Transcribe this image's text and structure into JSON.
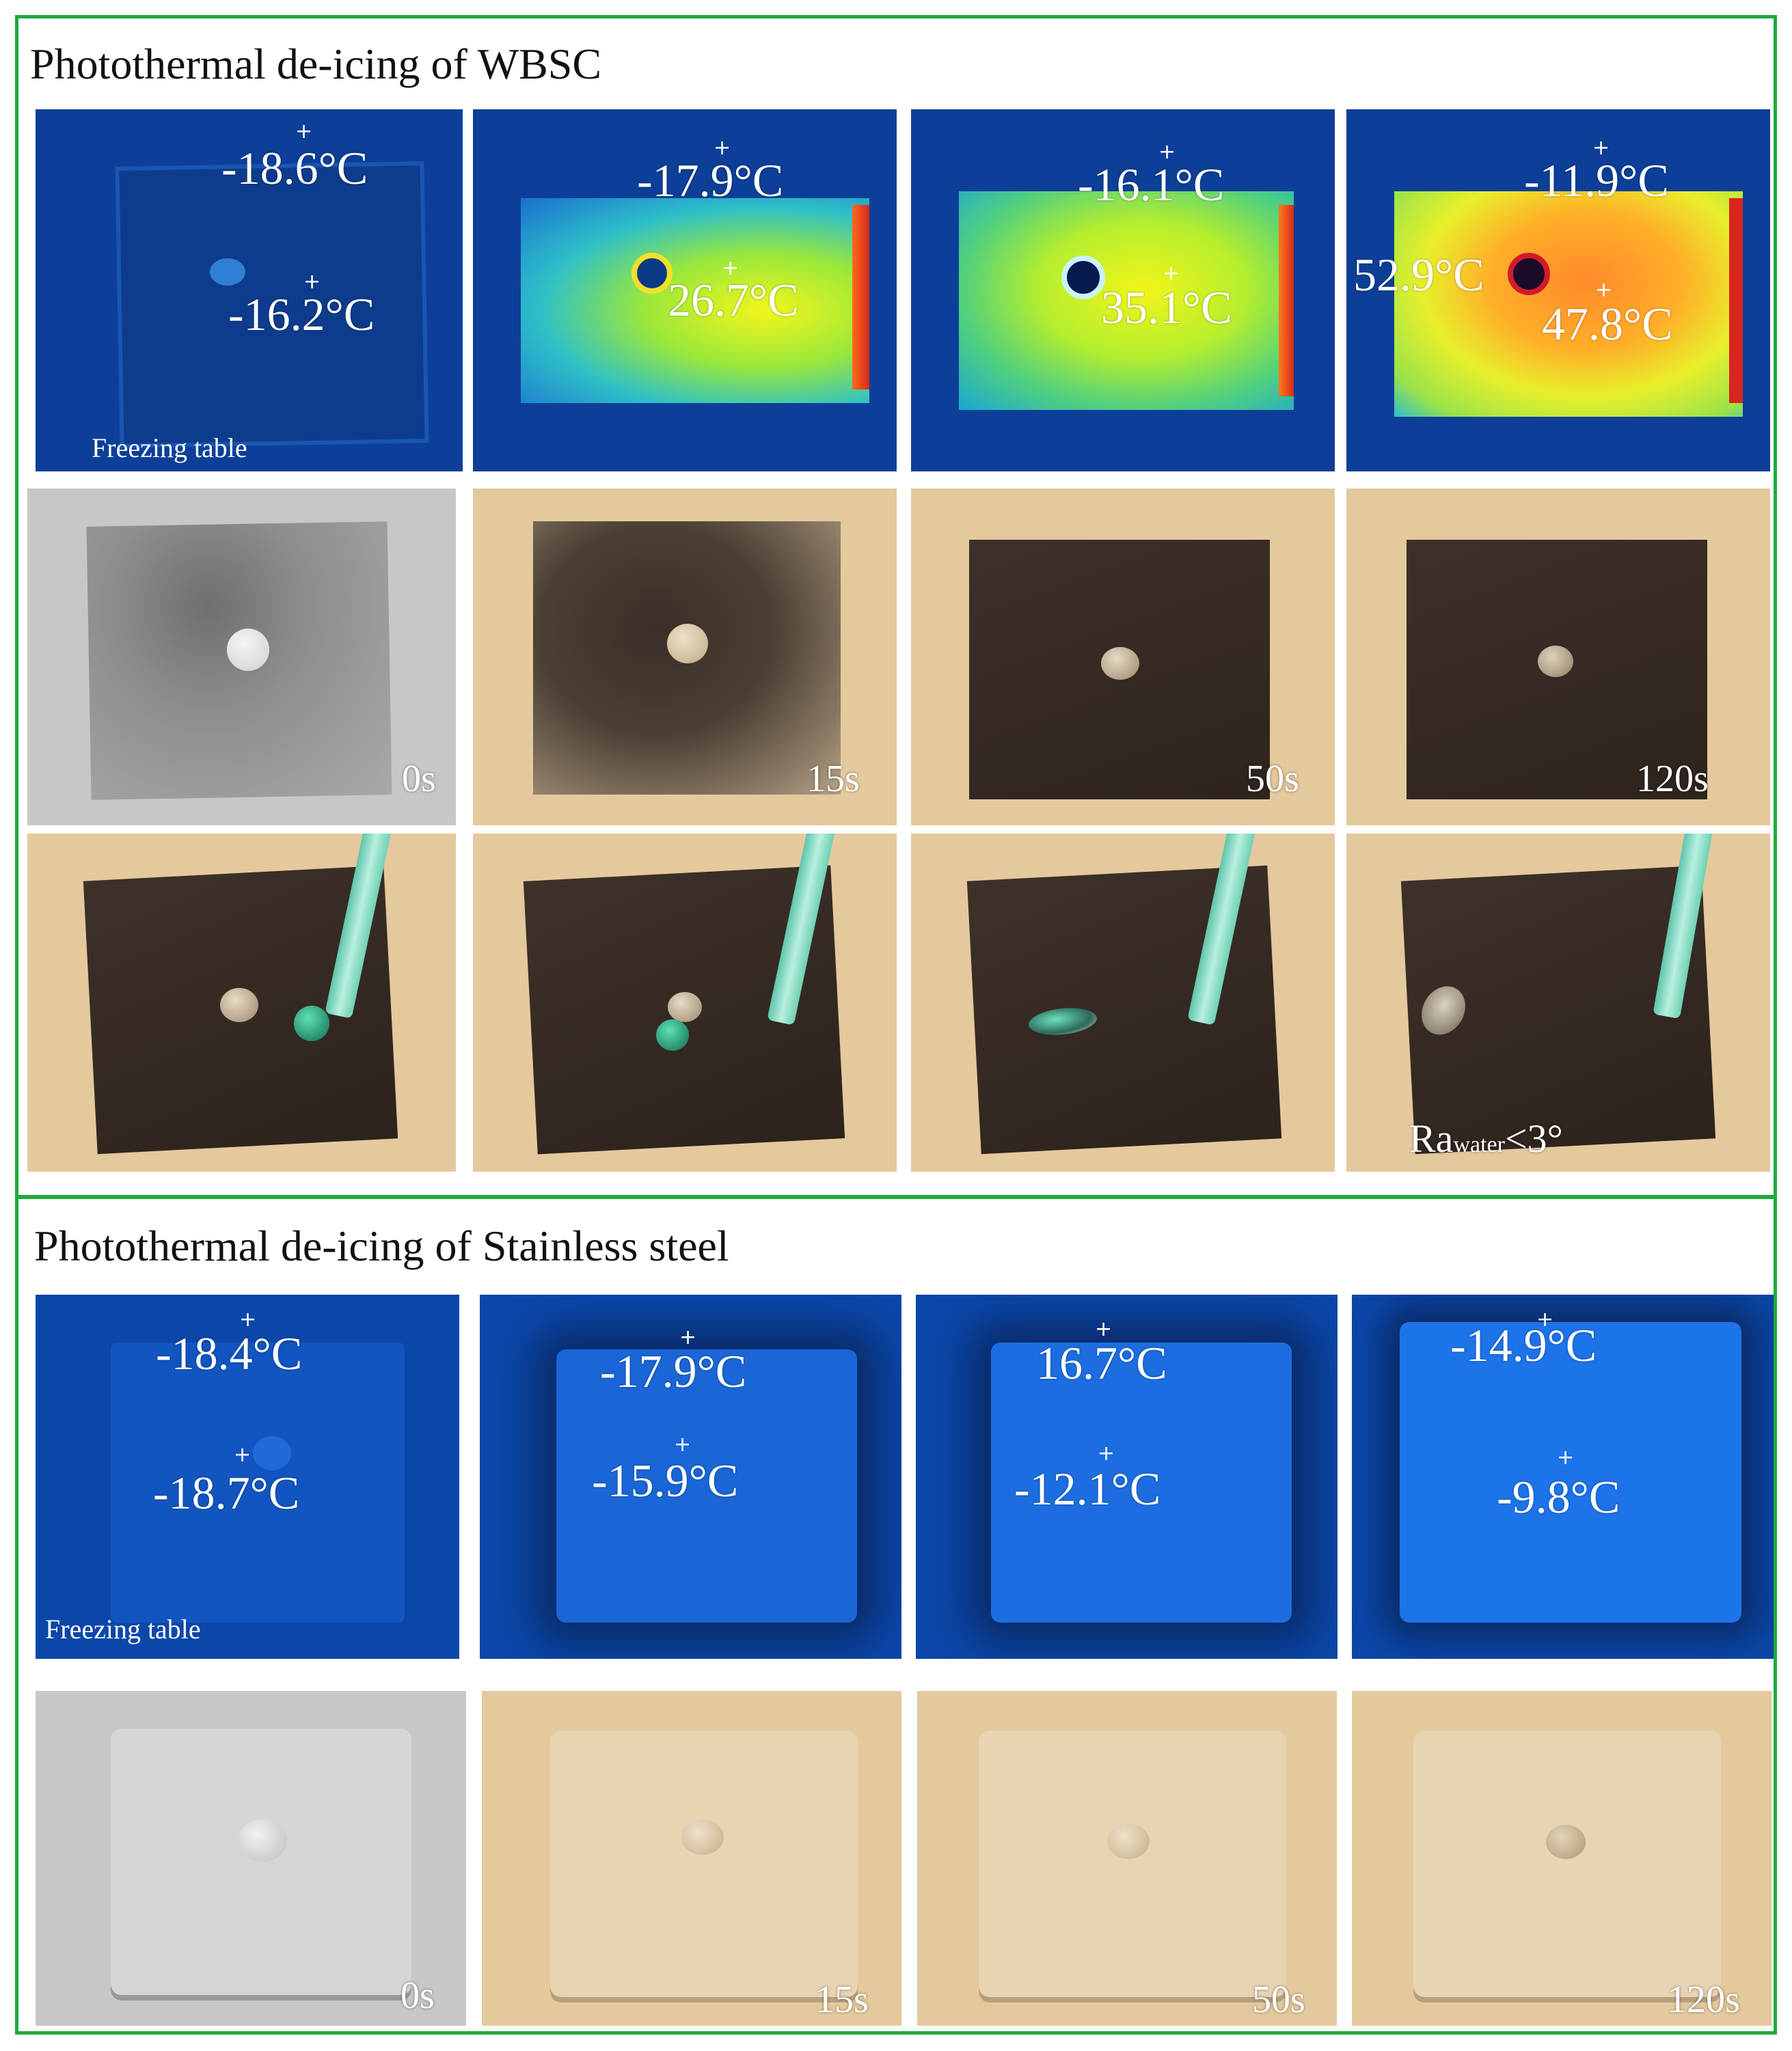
{
  "wbsc": {
    "title": "Photothermal de-icing of WBSC",
    "thermal": [
      {
        "top_temp": "-18.6°C",
        "center_temp": "-16.2°C",
        "note": "Freezing table"
      },
      {
        "top_temp": "-17.9°C",
        "center_temp": "26.7°C"
      },
      {
        "top_temp": "-16.1°C",
        "center_temp": "35.1°C"
      },
      {
        "top_temp": "-11.9°C",
        "left_temp": "52.9°C",
        "center_temp": "47.8°C"
      }
    ],
    "photos": [
      {
        "time": "0s"
      },
      {
        "time": "15s"
      },
      {
        "time": "50s"
      },
      {
        "time": "120s"
      }
    ],
    "sliding": {
      "ra_main": "Ra",
      "ra_sub": "water",
      "ra_value": "<3°"
    }
  },
  "stainless": {
    "title": "Photothermal de-icing of Stainless steel",
    "thermal": [
      {
        "top_temp": "-18.4°C",
        "center_temp": "-18.7°C",
        "note": "Freezing table"
      },
      {
        "top_temp": "-17.9°C",
        "center_temp": "-15.9°C"
      },
      {
        "top_temp": "16.7°C",
        "center_temp": "-12.1°C"
      },
      {
        "top_temp": "-14.9°C",
        "center_temp": "-9.8°C"
      }
    ],
    "photos": [
      {
        "time": "0s"
      },
      {
        "time": "15s"
      },
      {
        "time": "50s"
      },
      {
        "time": "120s"
      }
    ]
  },
  "colors": {
    "frame_green": "#1faa3e",
    "thermal_blue": "#0d3f98",
    "photo_tan": "#e4c99d",
    "photo_gray": "#c7c7c6"
  }
}
